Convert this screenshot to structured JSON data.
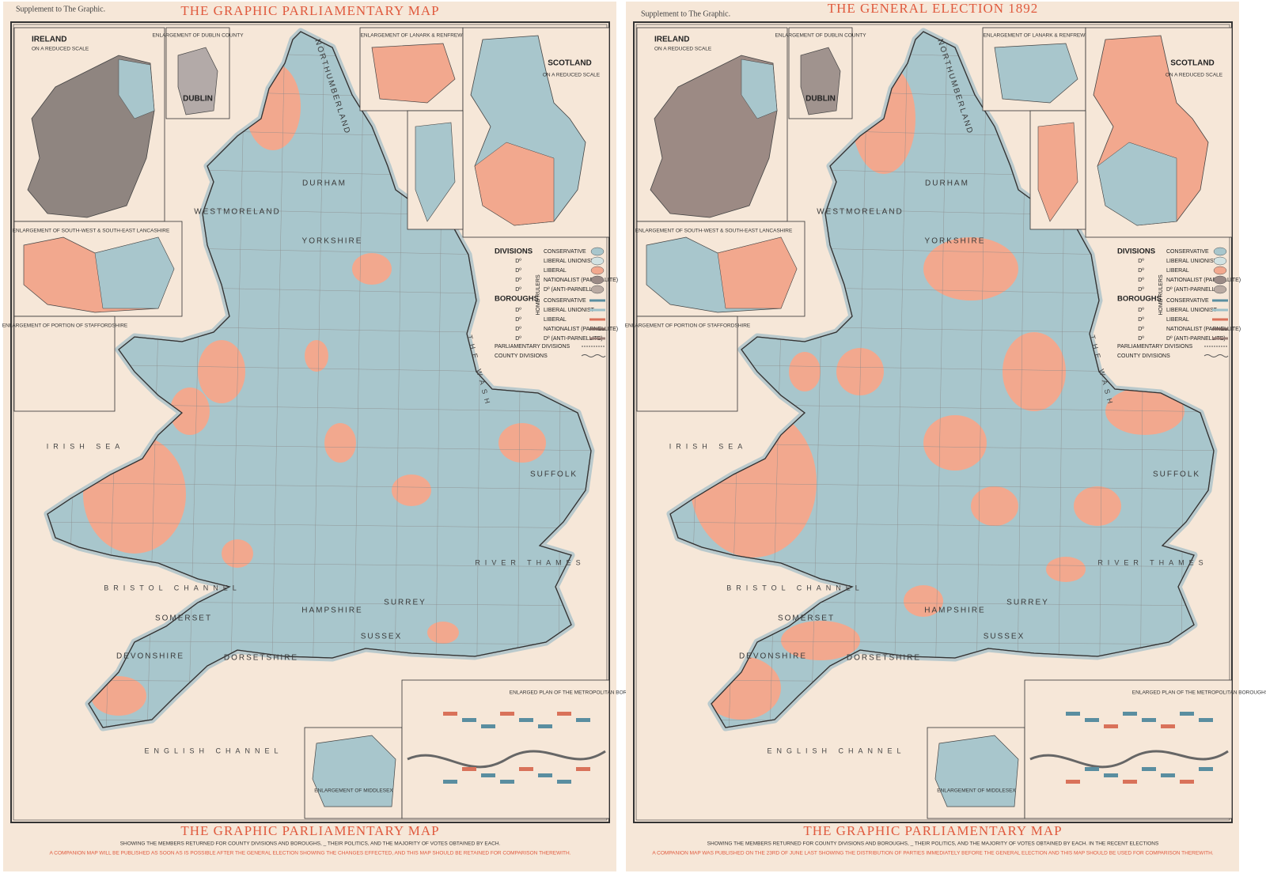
{
  "panels": [
    {
      "supplement": "Supplement to The Graphic.",
      "title": "THE GRAPHIC PARLIAMENTARY MAP",
      "insets": {
        "ireland": "IRELAND",
        "ireland_scale": "ON A REDUCED SCALE",
        "dublin": "ENLARGEMENT OF DUBLIN COUNTY",
        "dublin_label": "DUBLIN",
        "lanark": "ENLARGEMENT OF LANARK & RENFREW",
        "scotland": "SCOTLAND",
        "scotland_scale": "ON A REDUCED SCALE",
        "lancashire": "ENLARGEMENT OF SOUTH-WEST & SOUTH-EAST LANCASHIRE",
        "staffordshire": "ENLARGEMENT OF PORTION OF STAFFORDSHIRE",
        "middlesex": "ENLARGEMENT OF MIDDLESEX",
        "metropolitan": "ENLARGED PLAN OF THE METROPOLITAN BOROUGHS"
      },
      "legend": {
        "divisions": "DIVISIONS",
        "boroughs": "BOROUGHS",
        "home_rulers": "HOME RULERS",
        "items": [
          {
            "label": "CONSERVATIVE",
            "color": "#a8c6cc"
          },
          {
            "prefix": "Dº",
            "label": "LIBERAL UNIONIST",
            "color": "#d2e2e2"
          },
          {
            "prefix": "Dº",
            "label": "LIBERAL",
            "color": "#f2a88e"
          },
          {
            "prefix": "Dº",
            "label": "NATIONALIST (PARNELLITE)",
            "color": "#9a8a86"
          },
          {
            "prefix": "Dº",
            "label": "Dº (ANTI-PARNELLITE)",
            "color": "#b9aaa2"
          },
          {
            "label": "CONSERVATIVE",
            "color": "#5a8ea0"
          },
          {
            "prefix": "Dº",
            "label": "LIBERAL UNIONIST",
            "color": "#9cc0c8"
          },
          {
            "prefix": "Dº",
            "label": "LIBERAL",
            "color": "#d9725a"
          },
          {
            "prefix": "Dº",
            "label": "NATIONALIST (PARNELLITE)",
            "color": "#7a6660"
          },
          {
            "prefix": "Dº",
            "label": "Dº (ANTI-PARNELLITE)",
            "color": "#9a7f78"
          }
        ],
        "parliamentary": "PARLIAMENTARY DIVISIONS",
        "county": "COUNTY DIVISIONS"
      },
      "places": [
        "YORKSHIRE",
        "DURHAM",
        "WESTMORELAND",
        "NORTHUMBERLAND",
        "DEVONSHIRE",
        "DORSETSHIRE",
        "SOMERSET",
        "SUFFOLK",
        "HAMPSHIRE",
        "SURREY",
        "SUSSEX",
        "IRISH SEA",
        "BRISTOL CHANNEL",
        "ENGLISH CHANNEL",
        "RIVER THAMES",
        "THE WASH"
      ],
      "footer": {
        "title": "THE GRAPHIC PARLIAMENTARY MAP",
        "subtitle": "SHOWING THE MEMBERS RETURNED FOR COUNTY DIVISIONS AND BOROUGHS, _ THEIR POLITICS, AND THE MAJORITY OF VOTES OBTAINED BY EACH.",
        "note": "A COMPANION MAP WILL BE PUBLISHED AS SOON AS IS POSSIBLE AFTER THE GENERAL ELECTION SHOWING THE CHANGES EFFECTED, AND THIS MAP SHOULD BE RETAINED FOR COMPARISON THEREWITH."
      }
    },
    {
      "supplement": "Supplement to The Graphic.",
      "title": "THE GENERAL ELECTION 1892",
      "insets": {
        "ireland": "IRELAND",
        "ireland_scale": "ON A REDUCED SCALE",
        "dublin": "ENLARGEMENT OF DUBLIN COUNTY",
        "dublin_label": "DUBLIN",
        "lanark": "ENLARGEMENT OF LANARK & RENFREW",
        "scotland": "SCOTLAND",
        "scotland_scale": "ON A REDUCED SCALE",
        "lancashire": "ENLARGEMENT OF SOUTH-WEST & SOUTH-EAST LANCASHIRE",
        "staffordshire": "ENLARGEMENT OF PORTION OF STAFFORDSHIRE",
        "middlesex": "ENLARGEMENT OF MIDDLESEX",
        "metropolitan": "ENLARGED PLAN OF THE METROPOLITAN BOROUGHS"
      },
      "legend": {
        "divisions": "DIVISIONS",
        "boroughs": "BOROUGHS",
        "home_rulers": "HOME RULERS",
        "items": [
          {
            "label": "CONSERVATIVE",
            "color": "#a8c6cc"
          },
          {
            "prefix": "Dº",
            "label": "LIBERAL UNIONIST",
            "color": "#d2e2e2"
          },
          {
            "prefix": "Dº",
            "label": "LIBERAL",
            "color": "#f2a88e"
          },
          {
            "prefix": "Dº",
            "label": "NATIONALIST (PARNELLITE)",
            "color": "#9a8a86"
          },
          {
            "prefix": "Dº",
            "label": "Dº (ANTI-PARNELLITE)",
            "color": "#b9aaa2"
          },
          {
            "label": "CONSERVATIVE",
            "color": "#5a8ea0"
          },
          {
            "prefix": "Dº",
            "label": "LIBERAL UNIONIST",
            "color": "#9cc0c8"
          },
          {
            "prefix": "Dº",
            "label": "LIBERAL",
            "color": "#d9725a"
          },
          {
            "prefix": "Dº",
            "label": "NATIONALIST (PARNELLITE)",
            "color": "#7a6660"
          },
          {
            "prefix": "Dº",
            "label": "Dº (ANTI-PARNELLITE)",
            "color": "#9a7f78"
          }
        ],
        "parliamentary": "PARLIAMENTARY DIVISIONS",
        "county": "COUNTY DIVISIONS"
      },
      "places": [
        "YORKSHIRE",
        "DURHAM",
        "WESTMORELAND",
        "NORTHUMBERLAND",
        "DEVONSHIRE",
        "DORSETSHIRE",
        "SOMERSET",
        "SUFFOLK",
        "HAMPSHIRE",
        "SURREY",
        "SUSSEX",
        "IRISH SEA",
        "BRISTOL CHANNEL",
        "ENGLISH CHANNEL",
        "RIVER THAMES",
        "THE WASH"
      ],
      "footer": {
        "title": "THE GRAPHIC PARLIAMENTARY MAP",
        "subtitle": "SHOWING THE MEMBERS RETURNED FOR COUNTY DIVISIONS AND BOROUGHS, _ THEIR POLITICS, AND THE MAJORITY OF VOTES OBTAINED BY EACH. IN THE RECENT ELECTIONS",
        "note": "A COMPANION MAP WAS PUBLISHED ON THE 23RD OF JUNE LAST SHOWING THE DISTRIBUTION OF PARTIES IMMEDIATELY BEFORE THE GENERAL ELECTION AND THIS MAP SHOULD BE USED FOR COMPARISON THEREWITH."
      }
    }
  ]
}
